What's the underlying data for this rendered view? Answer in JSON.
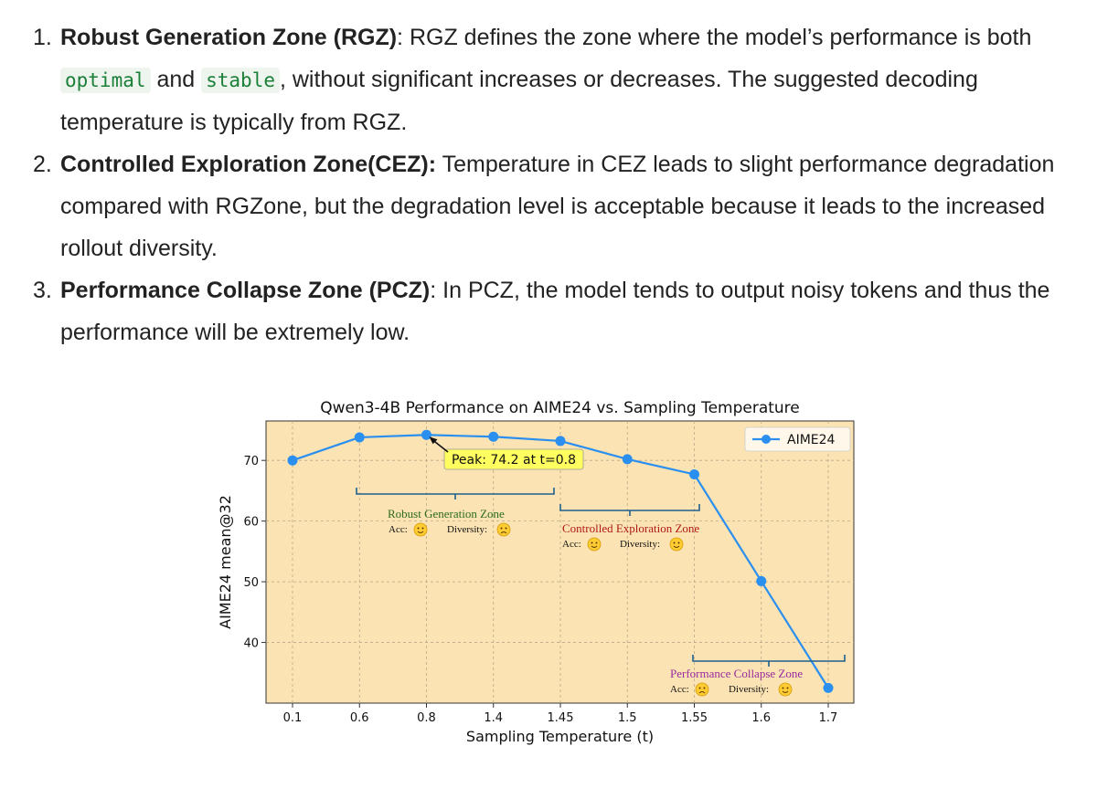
{
  "document": {
    "items": [
      {
        "number": "1.",
        "term": "Robust Generation Zone (RGZ)",
        "sep": ":",
        "text_before": " RGZ defines the zone where the model’s performance is both ",
        "code1": "optimal",
        "text_mid": " and ",
        "code2": "stable",
        "text_after": ", without significant increases or decreases. The suggested decoding temperature is typically from RGZ."
      },
      {
        "number": "2.",
        "term": "Controlled Exploration Zone(CEZ):",
        "text": " Temperature in CEZ leads to slight performance degradation compared with RGZone, but the degradation level is acceptable because it leads to the increased rollout diversity."
      },
      {
        "number": "3.",
        "term": "Performance Collapse Zone (PCZ)",
        "sep": ":",
        "text": " In PCZ, the model tends to output noisy tokens and thus the performance will be extremely low."
      }
    ]
  },
  "chart_data": {
    "type": "line",
    "title": "Qwen3-4B Performance on AIME24 vs. Sampling Temperature",
    "xlabel": "Sampling Temperature (t)",
    "ylabel": "AIME24 mean@32",
    "categories": [
      "0.1",
      "0.6",
      "0.8",
      "1.4",
      "1.45",
      "1.5",
      "1.55",
      "1.6",
      "1.7"
    ],
    "series": [
      {
        "name": "AIME24",
        "values": [
          70.0,
          73.8,
          74.2,
          73.9,
          73.2,
          70.2,
          67.7,
          50.1,
          32.5
        ]
      }
    ],
    "yticks": [
      40,
      50,
      60,
      70
    ],
    "ylim": [
      30,
      76.5
    ],
    "grid": true,
    "legend": "top-right",
    "peak_label": "Peak: 74.2 at t=0.8",
    "zones": [
      {
        "name": "Robust Generation Zone",
        "acc_label": "Acc:",
        "div_label": "Diversity:",
        "color": "#2e6b1f"
      },
      {
        "name": "Controlled Exploration Zone",
        "acc_label": "Acc:",
        "div_label": "Diversity:",
        "color": "#b01818"
      },
      {
        "name": "Performance Collapse Zone",
        "acc_label": "Acc:",
        "div_label": "Diversity:",
        "color": "#9a2aa0"
      }
    ],
    "colors": {
      "line": "#2b8ff0",
      "plot_bg": "#fbe3b3",
      "peak_box": "#ffff60",
      "bracket": "#1e5f8e"
    }
  }
}
